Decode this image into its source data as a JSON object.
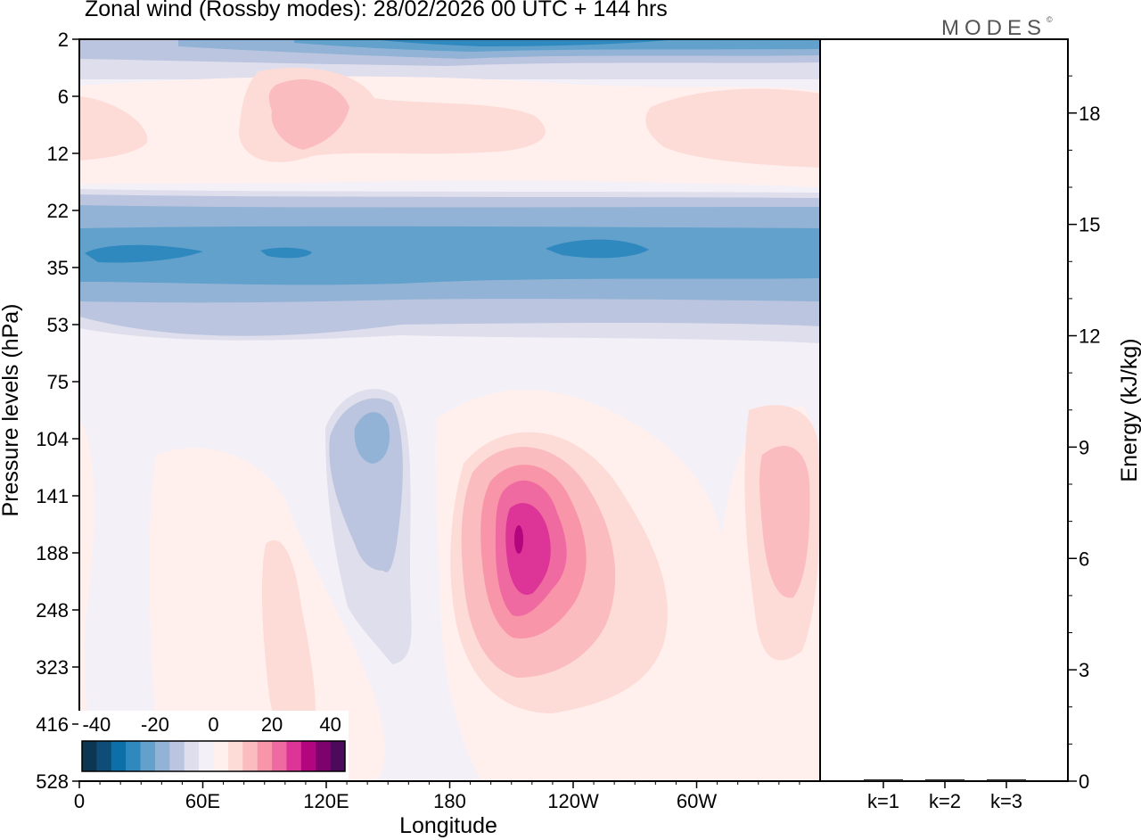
{
  "title": "Zonal wind (Rossby modes):  28/02/2026  00 UTC  + 144 hrs",
  "brand": {
    "text": "MODES",
    "mark": "©"
  },
  "chart_data": [
    {
      "type": "heatmap",
      "title": "Zonal wind (Rossby modes):  28/02/2026  00 UTC  + 144 hrs",
      "xlabel": "Longitude",
      "ylabel": "Pressure levels (hPa)",
      "x_tick_labels": [
        "0",
        "60E",
        "120E",
        "180",
        "120W",
        "60W"
      ],
      "y_tick_labels": [
        "2",
        "6",
        "12",
        "22",
        "35",
        "53",
        "75",
        "104",
        "141",
        "188",
        "248",
        "323",
        "416",
        "528"
      ],
      "xlim_deg_east": [
        0,
        360
      ],
      "colorbar": {
        "tick_labels": [
          "-40",
          "-20",
          "0",
          "20",
          "40"
        ],
        "range": [
          -45,
          45
        ],
        "step": 5,
        "colors": [
          "#0d3653",
          "#0f4d78",
          "#0d6fa8",
          "#2f89bf",
          "#61a1cb",
          "#93b3d6",
          "#bcc5df",
          "#dfdeec",
          "#f4f0f7",
          "#fff0ee",
          "#fddcd8",
          "#fbbcc0",
          "#f995a8",
          "#f06aa2",
          "#dd3597",
          "#b3057e",
          "#7e026e",
          "#4c0a5c"
        ]
      },
      "features": [
        {
          "name": "upper-easterly-band",
          "value": -15,
          "lon": [
            130,
            230
          ],
          "level": "2"
        },
        {
          "name": "upper-westerly-6-12",
          "value": 10,
          "lon": [
            80,
            140
          ],
          "level": "6-12"
        },
        {
          "name": "easterly-jet-35",
          "value": -20,
          "lon": [
            0,
            360
          ],
          "level": "35"
        },
        {
          "name": "negative-cell-104-188",
          "value": -10,
          "lon": [
            125,
            165
          ],
          "level": "104-188"
        },
        {
          "name": "westerly-max",
          "value": 35,
          "lon": [
            195,
            230
          ],
          "level": "141-248"
        },
        {
          "name": "positive-cell-east",
          "value": 10,
          "lon": [
            325,
            355
          ],
          "level": "141-248"
        }
      ]
    },
    {
      "type": "bar",
      "categories": [
        "k=1",
        "k=2",
        "k=3"
      ],
      "values": [
        0,
        0,
        0
      ],
      "ylabel": "Energy (kJ/kg)",
      "y_tick_labels": [
        "0",
        "3",
        "6",
        "9",
        "12",
        "15",
        "18"
      ],
      "ylim": [
        0,
        20
      ]
    }
  ]
}
